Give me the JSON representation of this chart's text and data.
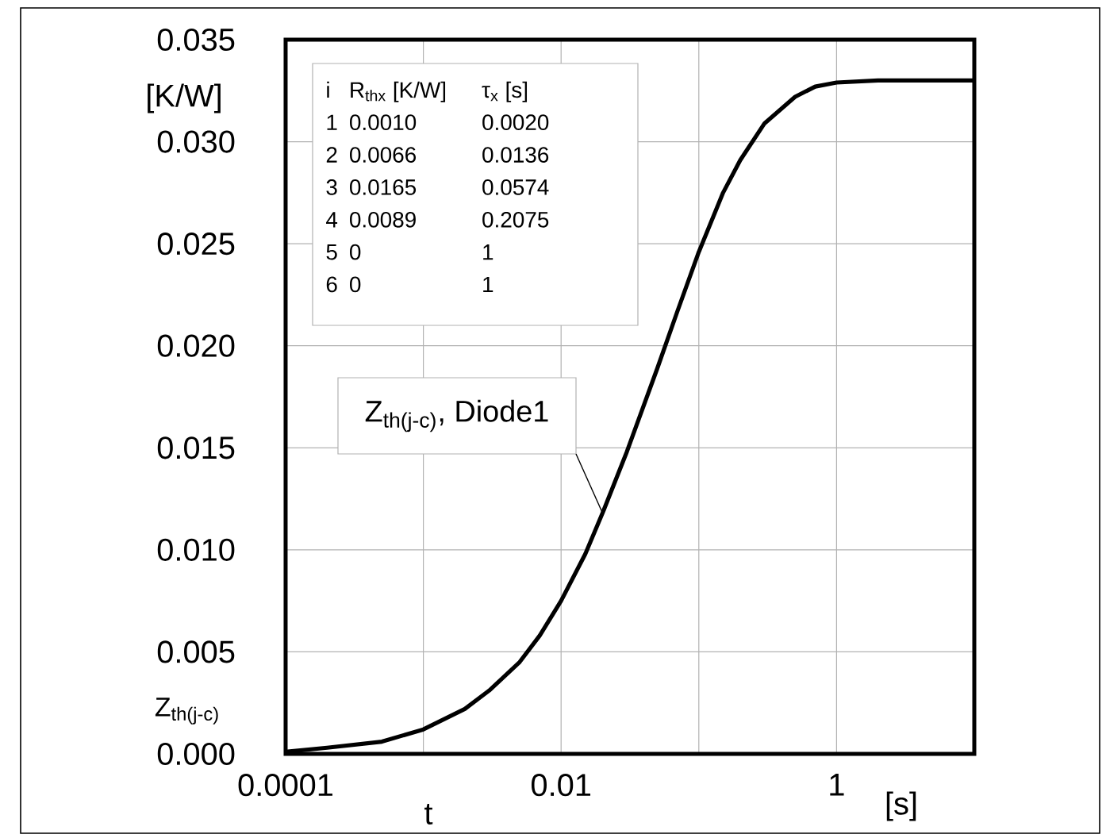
{
  "chart_data": {
    "type": "line",
    "xlabel": "t",
    "ylabel": "Z$_{th(j-c)}$",
    "annotations": [
      "[K/W]",
      "[s]",
      "i",
      "R$_{thx}$ [K/W]",
      "τ$_{x}$ [s]",
      "1",
      "0.0010",
      "0.0020",
      "2",
      "0.0066",
      "0.0136",
      "3",
      "0.0165",
      "0.0574",
      "4",
      "0.0089",
      "0.2075",
      "5",
      "0",
      "1",
      "6",
      "0",
      "1"
    ],
    "log": "x",
    "grid": true,
    "xlim": [
      0.0001,
      10
    ],
    "xticks": [
      0.0001,
      {
        "value": 0.001,
        "label": null
      },
      0.01,
      {
        "value": 0.1,
        "label": null
      },
      1
    ],
    "ylim": [
      0,
      0.035
    ],
    "yticks": [
      {
        "value": 0,
        "label": "0.000"
      },
      {
        "value": 0.005,
        "label": "0.005"
      },
      {
        "value": 0.01,
        "label": "0.010"
      },
      {
        "value": 0.015,
        "label": "0.015"
      },
      {
        "value": 0.02,
        "label": "0.020"
      },
      {
        "value": 0.025,
        "label": "0.025"
      },
      {
        "value": 0.03,
        "label": "0.030"
      },
      {
        "value": 0.035,
        "label": "0.035"
      }
    ],
    "series": [
      {
        "name": "Z$_{th(j-c)}$, Diode1",
        "color": "#000000",
        "x": [
          0.0001,
          0.0002,
          0.0005,
          0.001,
          0.002,
          0.003,
          0.005,
          0.007,
          0.01,
          0.015,
          0.02,
          0.03,
          0.05,
          0.07,
          0.1,
          0.15,
          0.2,
          0.3,
          0.5,
          0.7,
          1,
          2,
          5,
          10
        ],
        "values": [
          0.0001,
          0.0003,
          0.0006,
          0.0012,
          0.0022,
          0.0031,
          0.0045,
          0.0058,
          0.0075,
          0.0098,
          0.0118,
          0.0148,
          0.0189,
          0.0217,
          0.0246,
          0.0275,
          0.0291,
          0.0309,
          0.0322,
          0.0327,
          0.0329,
          0.033,
          0.033,
          0.033
        ]
      }
    ]
  }
}
